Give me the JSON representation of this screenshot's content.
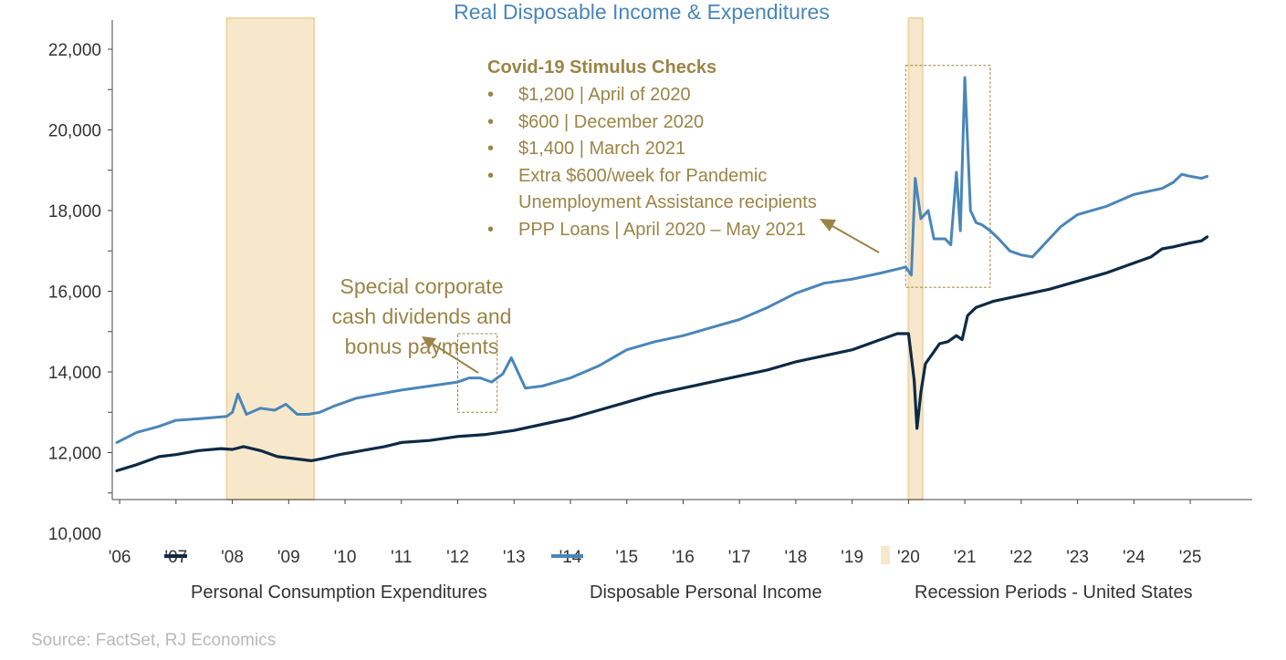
{
  "chart_data": {
    "type": "line",
    "title": "Real Disposable Income & Expenditures",
    "xlabel": "",
    "ylabel": "",
    "ylim": [
      10000,
      23000
    ],
    "xlim": [
      2005.95,
      2026.1
    ],
    "y_ticks": [
      10000,
      12000,
      14000,
      16000,
      18000,
      20000,
      22000
    ],
    "y_tick_labels": [
      "10,000",
      "12,000",
      "14,000",
      "16,000",
      "18,000",
      "20,000",
      "22,000"
    ],
    "x_ticks": [
      2006,
      2007,
      2008,
      2009,
      2010,
      2011,
      2012,
      2013,
      2014,
      2015,
      2016,
      2017,
      2018,
      2019,
      2020,
      2021,
      2022,
      2023,
      2024,
      2025
    ],
    "x_tick_labels": [
      "'06",
      "'07",
      "'08",
      "'09",
      "'10",
      "'11",
      "'12",
      "'13",
      "'14",
      "'15",
      "'16",
      "'17",
      "'18",
      "'19",
      "'20",
      "'21",
      "'22",
      "'23",
      "'24",
      "'25"
    ],
    "grid": false,
    "legend_position": "bottom",
    "series": [
      {
        "name": "Personal Consumption Expenditures",
        "color": "#0d2a45",
        "x": [
          2005.95,
          2006.3,
          2006.7,
          2007.0,
          2007.4,
          2007.8,
          2008.0,
          2008.2,
          2008.5,
          2008.8,
          2009.1,
          2009.4,
          2009.6,
          2009.9,
          2010.3,
          2010.7,
          2011.0,
          2011.5,
          2012.0,
          2012.5,
          2013.0,
          2013.5,
          2014.0,
          2014.5,
          2015.0,
          2015.5,
          2016.0,
          2016.5,
          2017.0,
          2017.5,
          2018.0,
          2018.5,
          2019.0,
          2019.5,
          2019.8,
          2020.0,
          2020.1,
          2020.15,
          2020.22,
          2020.3,
          2020.45,
          2020.55,
          2020.7,
          2020.85,
          2020.95,
          2021.05,
          2021.2,
          2021.5,
          2022.0,
          2022.5,
          2023.0,
          2023.5,
          2024.0,
          2024.3,
          2024.5,
          2024.7,
          2025.0,
          2025.2,
          2025.3
        ],
        "values": [
          11550,
          11700,
          11900,
          11950,
          12050,
          12100,
          12080,
          12150,
          12050,
          11900,
          11850,
          11800,
          11850,
          11950,
          12050,
          12150,
          12250,
          12300,
          12400,
          12450,
          12550,
          12700,
          12850,
          13050,
          13250,
          13450,
          13600,
          13750,
          13900,
          14050,
          14250,
          14400,
          14550,
          14800,
          14950,
          14950,
          13800,
          12600,
          13500,
          14200,
          14500,
          14700,
          14750,
          14900,
          14800,
          15400,
          15600,
          15750,
          15900,
          16050,
          16250,
          16450,
          16700,
          16850,
          17050,
          17100,
          17200,
          17250,
          17350
        ]
      },
      {
        "name": "Disposable Personal Income",
        "color": "#4a86b8",
        "x": [
          2005.95,
          2006.3,
          2006.7,
          2007.0,
          2007.5,
          2007.9,
          2008.0,
          2008.1,
          2008.25,
          2008.5,
          2008.75,
          2008.95,
          2009.15,
          2009.35,
          2009.55,
          2009.8,
          2010.2,
          2010.6,
          2011.0,
          2011.5,
          2012.0,
          2012.2,
          2012.4,
          2012.6,
          2012.8,
          2012.95,
          2013.2,
          2013.5,
          2014.0,
          2014.5,
          2015.0,
          2015.5,
          2016.0,
          2016.5,
          2017.0,
          2017.5,
          2018.0,
          2018.5,
          2019.0,
          2019.5,
          2019.8,
          2019.95,
          2020.05,
          2020.12,
          2020.22,
          2020.35,
          2020.45,
          2020.55,
          2020.65,
          2020.75,
          2020.85,
          2020.92,
          2021.0,
          2021.1,
          2021.2,
          2021.3,
          2021.45,
          2021.6,
          2021.8,
          2022.0,
          2022.2,
          2022.5,
          2022.7,
          2023.0,
          2023.5,
          2024.0,
          2024.5,
          2024.7,
          2024.85,
          2025.0,
          2025.2,
          2025.3
        ],
        "values": [
          12250,
          12500,
          12650,
          12800,
          12850,
          12900,
          13000,
          13450,
          12950,
          13100,
          13050,
          13200,
          12950,
          12950,
          13000,
          13150,
          13350,
          13450,
          13550,
          13650,
          13750,
          13850,
          13850,
          13750,
          13950,
          14350,
          13600,
          13650,
          13850,
          14150,
          14550,
          14750,
          14900,
          15100,
          15300,
          15600,
          15950,
          16200,
          16300,
          16450,
          16550,
          16600,
          16400,
          18800,
          17800,
          18000,
          17300,
          17300,
          17300,
          17150,
          18950,
          17500,
          21300,
          18000,
          17700,
          17650,
          17500,
          17300,
          17000,
          16900,
          16850,
          17300,
          17600,
          17900,
          18100,
          18400,
          18550,
          18700,
          18900,
          18850,
          18800,
          18850
        ]
      }
    ],
    "recessions": [
      {
        "name": "Recession Periods - United States",
        "start": 2007.9,
        "end": 2009.45
      },
      {
        "name": "Recession Periods - United States",
        "start": 2020.0,
        "end": 2020.25
      }
    ],
    "annotation_boxes": [
      {
        "x0": 2012.0,
        "x1": 2012.7,
        "y0": 13000,
        "y1": 14950
      },
      {
        "x0": 2019.95,
        "x1": 2021.45,
        "y0": 16100,
        "y1": 21600
      }
    ],
    "annotations": {
      "covid": {
        "heading": "Covid-19 Stimulus Checks",
        "bullets": [
          "$1,200 | April of 2020",
          "$600 | December 2020",
          "$1,400 | March 2021",
          "Extra $600/week for Pandemic",
          "Unemployment Assistance recipients",
          "PPP Loans | April 2020 – May 2021"
        ]
      },
      "dividends": {
        "lines": [
          "Special corporate",
          "cash dividends and",
          "bonus payments"
        ]
      }
    },
    "source": "Source: FactSet, RJ Economics"
  }
}
